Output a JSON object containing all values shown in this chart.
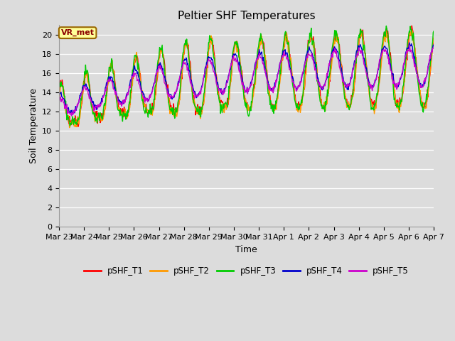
{
  "title": "Peltier SHF Temperatures",
  "xlabel": "Time",
  "ylabel": "Soil Temperature",
  "ylim": [
    0,
    21
  ],
  "yticks": [
    0,
    2,
    4,
    6,
    8,
    10,
    12,
    14,
    16,
    18,
    20
  ],
  "x_labels": [
    "Mar 23",
    "Mar 24",
    "Mar 25",
    "Mar 26",
    "Mar 27",
    "Mar 28",
    "Mar 29",
    "Mar 30",
    "Mar 31",
    "Apr 1",
    "Apr 2",
    "Apr 3",
    "Apr 4",
    "Apr 5",
    "Apr 6",
    "Apr 7"
  ],
  "series_names": [
    "pSHF_T1",
    "pSHF_T2",
    "pSHF_T3",
    "pSHF_T4",
    "pSHF_T5"
  ],
  "series_colors": [
    "#FF0000",
    "#FF9900",
    "#00CC00",
    "#0000CC",
    "#CC00CC"
  ],
  "legend_label": "VR_met",
  "legend_bg": "#FFFF99",
  "legend_border": "#996600",
  "bg_color": "#DCDCDC",
  "title_fontsize": 11,
  "axis_fontsize": 9,
  "tick_fontsize": 8,
  "linewidth": 1.0,
  "n_days": 15,
  "pts_per_day": 48,
  "seed": 42
}
